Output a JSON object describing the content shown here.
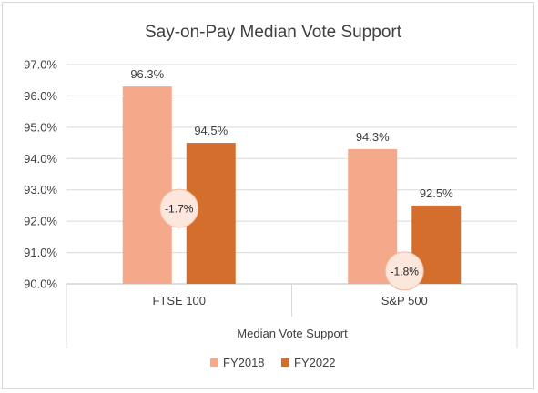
{
  "chart_data": {
    "type": "bar",
    "title": "Say-on-Pay Median Vote Support",
    "xlabel": "Median Vote  Support",
    "ylabel": "",
    "categories": [
      "FTSE 100",
      "S&P 500"
    ],
    "series": [
      {
        "name": "FY2018",
        "values": [
          96.3,
          94.3
        ],
        "labels": [
          "96.3%",
          "94.3%"
        ],
        "color": "#F4A98A"
      },
      {
        "name": "FY2022",
        "values": [
          94.5,
          92.5
        ],
        "labels": [
          "94.5%",
          "92.5%"
        ],
        "color": "#D46E2C"
      }
    ],
    "annotations": [
      "-1.7%",
      "-1.8%"
    ],
    "annotation_fill": "#FDE7DC",
    "annotation_stroke": "#F4B89C",
    "ylim": [
      90.0,
      97.0
    ],
    "yticks": [
      90.0,
      91.0,
      92.0,
      93.0,
      94.0,
      95.0,
      96.0,
      97.0
    ],
    "ytick_labels": [
      "90.0%",
      "91.0%",
      "92.0%",
      "93.0%",
      "94.0%",
      "95.0%",
      "96.0%",
      "97.0%"
    ],
    "grid": true,
    "legend_position": "bottom"
  }
}
